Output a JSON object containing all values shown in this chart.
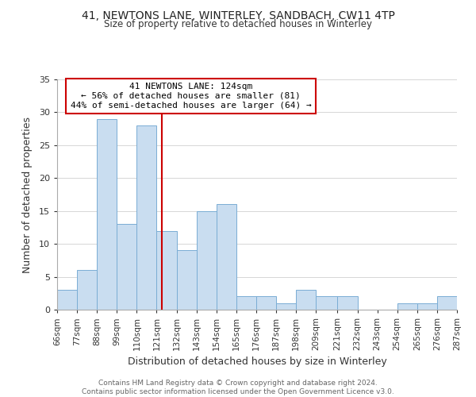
{
  "title": "41, NEWTONS LANE, WINTERLEY, SANDBACH, CW11 4TP",
  "subtitle": "Size of property relative to detached houses in Winterley",
  "xlabel": "Distribution of detached houses by size in Winterley",
  "ylabel": "Number of detached properties",
  "footer_line1": "Contains HM Land Registry data © Crown copyright and database right 2024.",
  "footer_line2": "Contains public sector information licensed under the Open Government Licence v3.0.",
  "annotation_line1": "41 NEWTONS LANE: 124sqm",
  "annotation_line2": "← 56% of detached houses are smaller (81)",
  "annotation_line3": "44% of semi-detached houses are larger (64) →",
  "bar_edges": [
    66,
    77,
    88,
    99,
    110,
    121,
    132,
    143,
    154,
    165,
    176,
    187,
    198,
    209,
    221,
    232,
    243,
    254,
    265,
    276,
    287
  ],
  "bar_heights": [
    3,
    6,
    29,
    13,
    28,
    12,
    9,
    15,
    16,
    2,
    2,
    1,
    3,
    2,
    2,
    0,
    0,
    1,
    1,
    2
  ],
  "property_value": 124,
  "bar_color": "#c9ddf0",
  "bar_edge_color": "#7aadd4",
  "vline_color": "#cc0000",
  "annotation_box_edge_color": "#cc0000",
  "ylim": [
    0,
    35
  ],
  "yticks": [
    0,
    5,
    10,
    15,
    20,
    25,
    30,
    35
  ],
  "tick_labels": [
    "66sqm",
    "77sqm",
    "88sqm",
    "99sqm",
    "110sqm",
    "121sqm",
    "132sqm",
    "143sqm",
    "154sqm",
    "165sqm",
    "176sqm",
    "187sqm",
    "198sqm",
    "209sqm",
    "221sqm",
    "232sqm",
    "243sqm",
    "254sqm",
    "265sqm",
    "276sqm",
    "287sqm"
  ]
}
